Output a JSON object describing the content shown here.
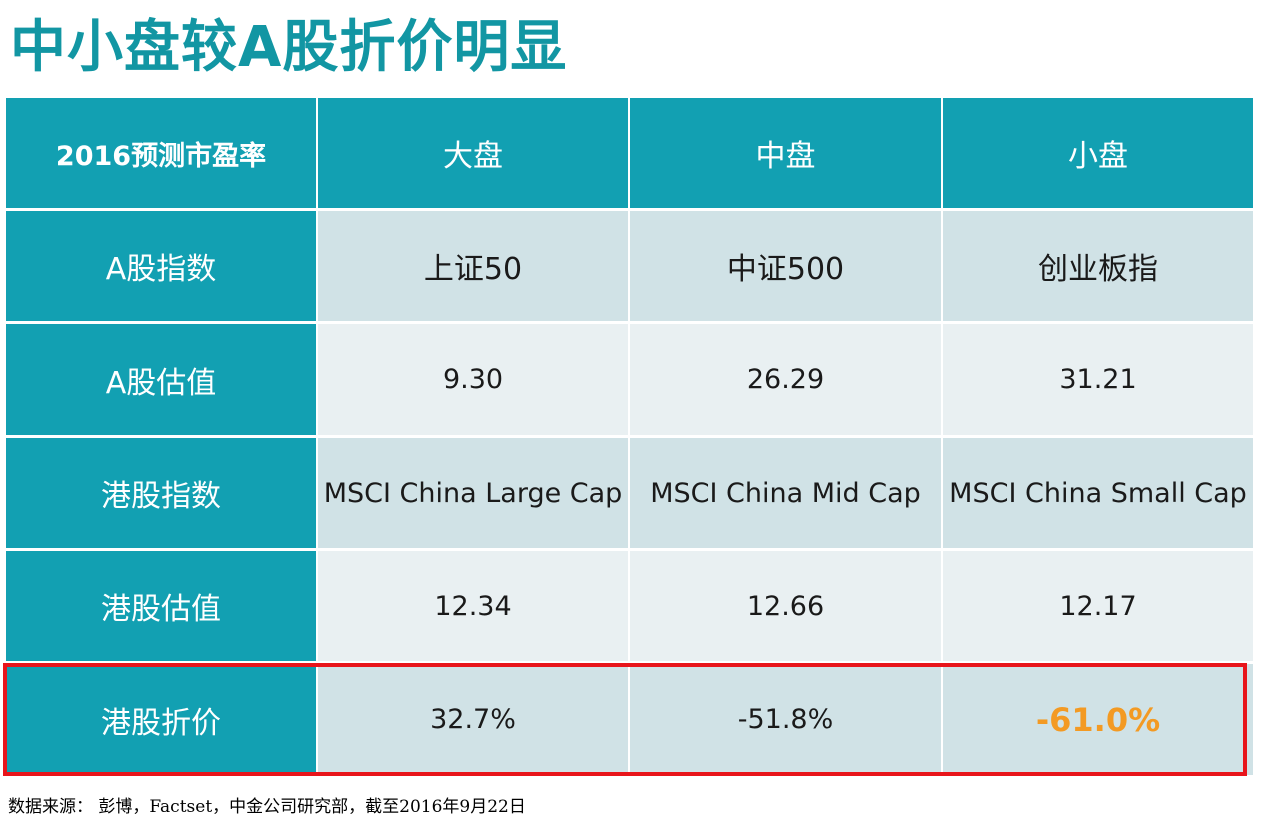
{
  "title": "中小盘较A股折价明显",
  "table": {
    "headers": [
      "2016预测市盈率",
      "大盘",
      "中盘",
      "小盘"
    ],
    "rows": [
      {
        "label": "A股指数",
        "values": [
          "上证50",
          "中证500",
          "创业板指"
        ]
      },
      {
        "label": "A股估值",
        "values": [
          "9.30",
          "26.29",
          "31.21"
        ]
      },
      {
        "label": "港股指数",
        "values": [
          "MSCI China Large Cap",
          "MSCI China Mid Cap",
          "MSCI China Small Cap"
        ]
      },
      {
        "label": "港股估值",
        "values": [
          "12.34",
          "12.66",
          "12.17"
        ]
      },
      {
        "label": "港股折价",
        "values": [
          "32.7%",
          "-51.8%",
          "-61.0%"
        ]
      }
    ]
  },
  "source": "数据来源： 彭博，Factset，中金公司研究部，截至2016年9月22日",
  "colors": {
    "accent": "#12a0b2",
    "title": "#1296a3",
    "highlight_border": "#e8151b",
    "emphasis_value": "#f39a23",
    "row_band_dark": "#d0e2e6",
    "row_band_light": "#e9f0f2"
  }
}
